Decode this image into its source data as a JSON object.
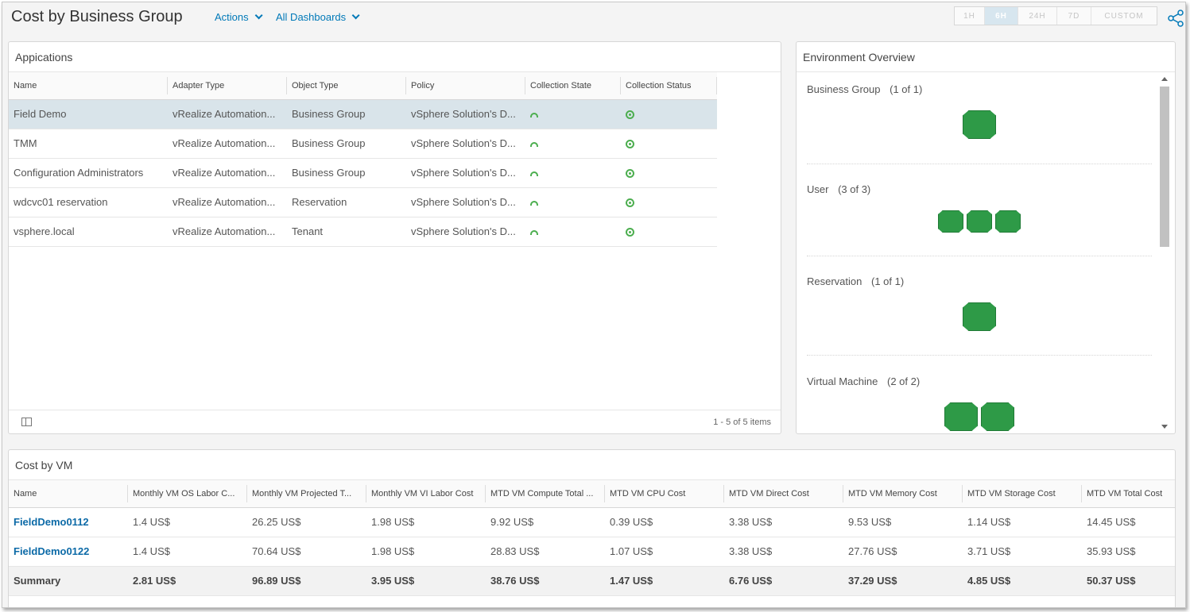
{
  "header": {
    "title": "Cost by Business Group",
    "actions_label": "Actions",
    "dashboards_label": "All Dashboards",
    "time_ranges": [
      "1H",
      "6H",
      "24H",
      "7D",
      "CUSTOM"
    ],
    "active_time_range": "6H",
    "share_icon": "share-icon"
  },
  "applications": {
    "title": "Appications",
    "columns": [
      "Name",
      "Adapter Type",
      "Object Type",
      "Policy",
      "Collection State",
      "Collection Status"
    ],
    "rows": [
      {
        "name": "Field Demo",
        "adapter": "vRealize Automation...",
        "object": "Business Group",
        "policy": "vSphere Solution's D...",
        "selected": true
      },
      {
        "name": "TMM",
        "adapter": "vRealize Automation...",
        "object": "Business Group",
        "policy": "vSphere Solution's D..."
      },
      {
        "name": "Configuration Administrators",
        "adapter": "vRealize Automation...",
        "object": "Business Group",
        "policy": "vSphere Solution's D..."
      },
      {
        "name": "wdcvc01 reservation",
        "adapter": "vRealize Automation...",
        "object": "Reservation",
        "policy": "vSphere Solution's D..."
      },
      {
        "name": "vsphere.local",
        "adapter": "vRealize Automation...",
        "object": "Tenant",
        "policy": "vSphere Solution's D..."
      }
    ],
    "pager": "1 - 5 of 5 items",
    "status_color": "#4cae4f"
  },
  "environment": {
    "title": "Environment Overview",
    "sections": [
      {
        "label": "Business Group",
        "count": "(1 of 1)",
        "boxes": 1
      },
      {
        "label": "User",
        "count": "(3 of 3)",
        "boxes": 3
      },
      {
        "label": "Reservation",
        "count": "(1 of 1)",
        "boxes": 1
      },
      {
        "label": "Virtual Machine",
        "count": "(2 of 2)",
        "boxes": 2
      }
    ],
    "box_color": "#2e9a47"
  },
  "cost_by_vm": {
    "title": "Cost by VM",
    "columns": [
      "Name",
      "Monthly VM OS Labor C...",
      "Monthly VM Projected T...",
      "Monthly VM VI Labor Cost",
      "MTD VM Compute Total ...",
      "MTD VM CPU Cost",
      "MTD VM Direct Cost",
      "MTD VM Memory Cost",
      "MTD VM Storage Cost",
      "MTD VM Total Cost"
    ],
    "rows": [
      [
        "FieldDemo0112",
        "1.4 US$",
        "26.25 US$",
        "1.98 US$",
        "9.92 US$",
        "0.39 US$",
        "3.38 US$",
        "9.53 US$",
        "1.14 US$",
        "14.45 US$"
      ],
      [
        "FieldDemo0122",
        "1.4 US$",
        "70.64 US$",
        "1.98 US$",
        "28.83 US$",
        "1.07 US$",
        "3.38 US$",
        "27.76 US$",
        "3.71 US$",
        "35.93 US$"
      ]
    ],
    "summary": [
      "Summary",
      "2.81 US$",
      "96.89 US$",
      "3.95 US$",
      "38.76 US$",
      "1.47 US$",
      "6.76 US$",
      "37.29 US$",
      "4.85 US$",
      "50.37 US$"
    ]
  }
}
